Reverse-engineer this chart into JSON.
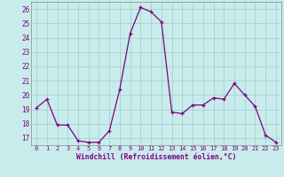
{
  "x": [
    0,
    1,
    2,
    3,
    4,
    5,
    6,
    7,
    8,
    9,
    10,
    11,
    12,
    13,
    14,
    15,
    16,
    17,
    18,
    19,
    20,
    21,
    22,
    23
  ],
  "y": [
    19.1,
    19.7,
    17.9,
    17.9,
    16.8,
    16.7,
    16.7,
    17.5,
    20.4,
    24.3,
    26.1,
    25.8,
    25.1,
    18.8,
    18.7,
    19.3,
    19.3,
    19.8,
    19.7,
    20.8,
    20.0,
    19.2,
    17.2,
    16.7
  ],
  "line_color": "#800080",
  "marker": "+",
  "marker_color": "#800080",
  "bg_color": "#c8ecec",
  "grid_color": "#a0cccc",
  "xlabel": "Windchill (Refroidissement éolien,°C)",
  "xlabel_color": "#800080",
  "tick_color": "#800080",
  "ylim": [
    16.5,
    26.5
  ],
  "yticks": [
    17,
    18,
    19,
    20,
    21,
    22,
    23,
    24,
    25,
    26
  ],
  "xlim": [
    -0.5,
    23.5
  ],
  "xticks": [
    0,
    1,
    2,
    3,
    4,
    5,
    6,
    7,
    8,
    9,
    10,
    11,
    12,
    13,
    14,
    15,
    16,
    17,
    18,
    19,
    20,
    21,
    22,
    23
  ]
}
